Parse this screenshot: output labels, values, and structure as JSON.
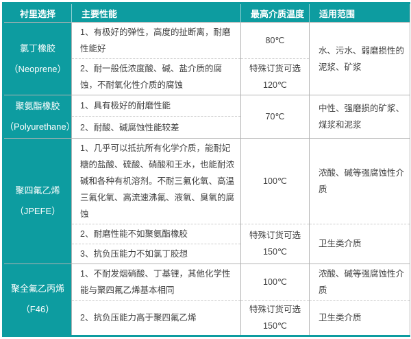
{
  "table": {
    "accent_color": "#0D9CA0",
    "grid_color": "#b3b3b3",
    "grid_dashed_color": "#cccccc",
    "text_color": "#404040",
    "headers": [
      "衬里选择",
      "主要性能",
      "最高介质温度",
      "适用范围"
    ],
    "groups": [
      {
        "name": "氯丁橡胶",
        "en": "（Neoprene）",
        "p": [
          "1、有极好的弹性，高度的扯断离，耐磨性能好",
          "2、耐一般低浓度酸、碱、盐介质的腐蚀，不耐氧化性介质的腐蚀"
        ],
        "t": [
          "80℃",
          "特殊订货可选\n120℃"
        ],
        "r": [
          "水、污水、弱磨损性的泥浆、矿浆"
        ]
      },
      {
        "name": "聚氨酯橡胶",
        "en": "（Polyurethane）",
        "p": [
          "1、具有极好的耐磨性能",
          "2、耐酸、碱腐蚀性能较差"
        ],
        "t": [
          "70℃"
        ],
        "r": [
          "中性、强磨损的矿浆、煤浆和泥浆"
        ]
      },
      {
        "name": "聚四氟乙烯",
        "en": "（JPEFE）",
        "p": [
          "1、几乎可以抵抗所有化学介质，能耐妃糖的盐酸、硫酸、硝酸和王水，也能耐浓碱和各种有机溶剂。不耐三氟化氧、高温三氟化氧、高流速沸氟、液氧、臭氧的腐蚀",
          "2、耐磨性能不如聚氨酯橡胶",
          "3、抗负压能力不如氯丁胶想"
        ],
        "t": [
          "100℃",
          "特殊订货可选\n150℃"
        ],
        "r": [
          "浓酸、碱等强腐蚀性介质",
          "卫生类介质"
        ]
      },
      {
        "name": "聚全氟乙丙烯",
        "en": "（F46）",
        "p": [
          "1、不耐发烟硝酸、丁基锂，其他化学性能与聚四氟乙烯基本相同",
          "2、抗负压能力高于聚四氟乙烯"
        ],
        "t": [
          "100℃",
          "特殊订货可选\n150℃"
        ],
        "r": [
          "浓酸、碱等强腐蚀性介质",
          "卫生类介质"
        ]
      }
    ]
  }
}
